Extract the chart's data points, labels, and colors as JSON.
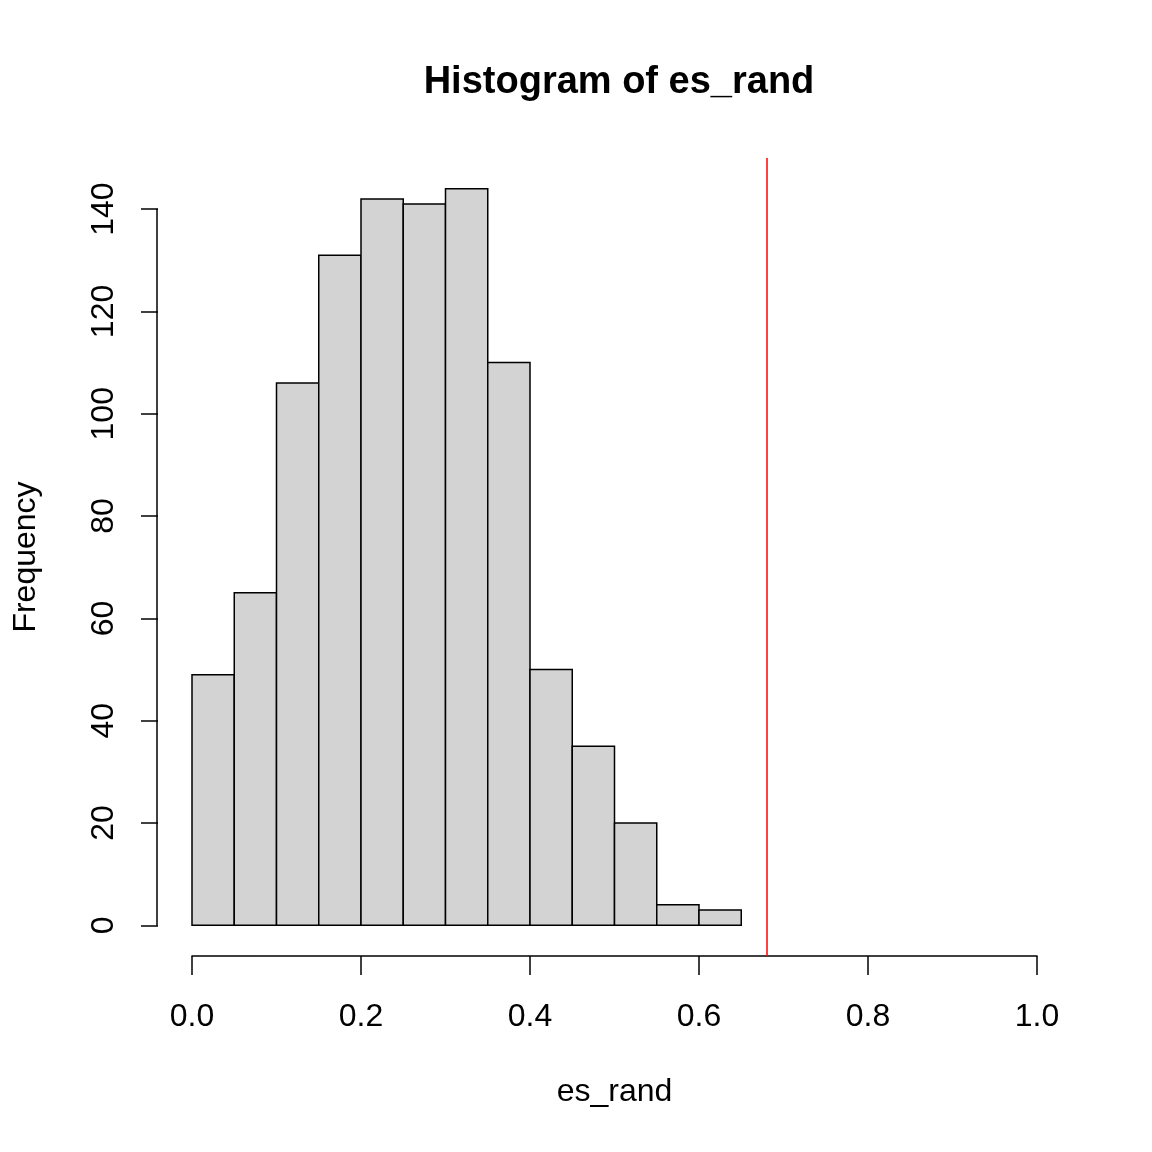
{
  "chart_data": {
    "type": "histogram",
    "title": "Histogram of es_rand",
    "xlabel": "es_rand",
    "ylabel": "Frequency",
    "bins": [
      0,
      0.05,
      0.1,
      0.15,
      0.2,
      0.25,
      0.3,
      0.35,
      0.4,
      0.45,
      0.5,
      0.55,
      0.6,
      0.65
    ],
    "values": [
      49,
      65,
      106,
      131,
      142,
      141,
      144,
      110,
      50,
      35,
      20,
      4,
      3
    ],
    "color": "#d3d3d3",
    "xlim": [
      0,
      1
    ],
    "ylim": [
      -6,
      150
    ],
    "xticks": [
      {
        "value": 0,
        "label": "0.0"
      },
      {
        "value": 0.2,
        "label": "0.2"
      },
      {
        "value": 0.4,
        "label": "0.4"
      },
      {
        "value": 0.6,
        "label": "0.6"
      },
      {
        "value": 0.8,
        "label": "0.8"
      },
      {
        "value": 1,
        "label": "1.0"
      }
    ],
    "yticks": [
      0,
      20,
      40,
      60,
      80,
      100,
      120,
      140
    ],
    "ref_lines": [
      {
        "axis": "x",
        "value": 0.68,
        "color": "#ff0000"
      }
    ]
  }
}
